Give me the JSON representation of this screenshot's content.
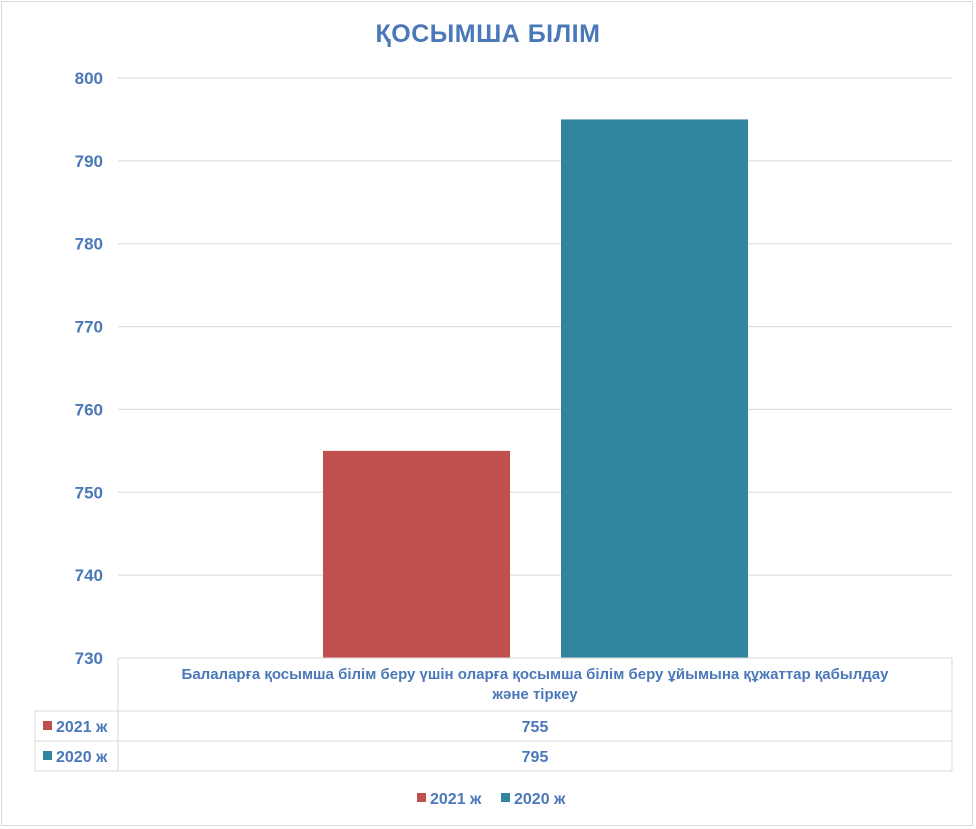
{
  "chart_data": {
    "type": "bar",
    "title": "ҚОСЫМША БІЛІМ",
    "categories": [
      "Балаларға қосымша білім беру үшін оларға қосымша білім беру ұйымына құжаттар қабылдау және тіркеу"
    ],
    "category_lines": [
      "Балаларға қосымша білім беру үшін оларға қосымша білім беру ұйымына құжаттар қабылдау",
      "және тіркеу"
    ],
    "series": [
      {
        "name": "2021 ж",
        "values": [
          755
        ],
        "color": "#c0504d"
      },
      {
        "name": "2020 ж",
        "values": [
          795
        ],
        "color": "#31859c"
      }
    ],
    "ylim": [
      730,
      800
    ],
    "yticks": [
      730,
      740,
      750,
      760,
      770,
      780,
      790,
      800
    ],
    "grid": true,
    "legend_position": "bottom",
    "data_table": true
  }
}
